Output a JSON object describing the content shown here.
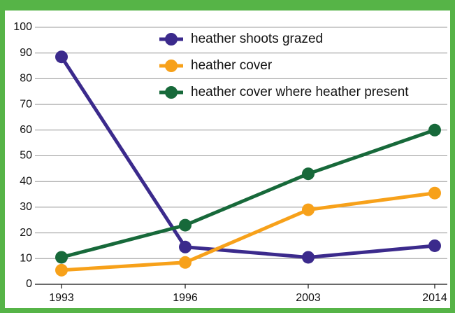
{
  "chart_data": {
    "type": "line",
    "categories": [
      "1993",
      "1996",
      "2003",
      "2014"
    ],
    "series": [
      {
        "name": "heather shoots grazed",
        "color": "#3b2a8c",
        "values": [
          88.5,
          14.5,
          10.5,
          15
        ]
      },
      {
        "name": "heather cover",
        "color": "#f7a11a",
        "values": [
          5.5,
          8.5,
          29,
          35.5
        ]
      },
      {
        "name": "heather cover where heather present",
        "color": "#17693a",
        "values": [
          10.5,
          23,
          43,
          60
        ]
      }
    ],
    "ylim": [
      0,
      100
    ],
    "yticks": [
      0,
      10,
      20,
      30,
      40,
      50,
      60,
      70,
      80,
      90,
      100
    ],
    "grid": true,
    "legend": "top"
  }
}
